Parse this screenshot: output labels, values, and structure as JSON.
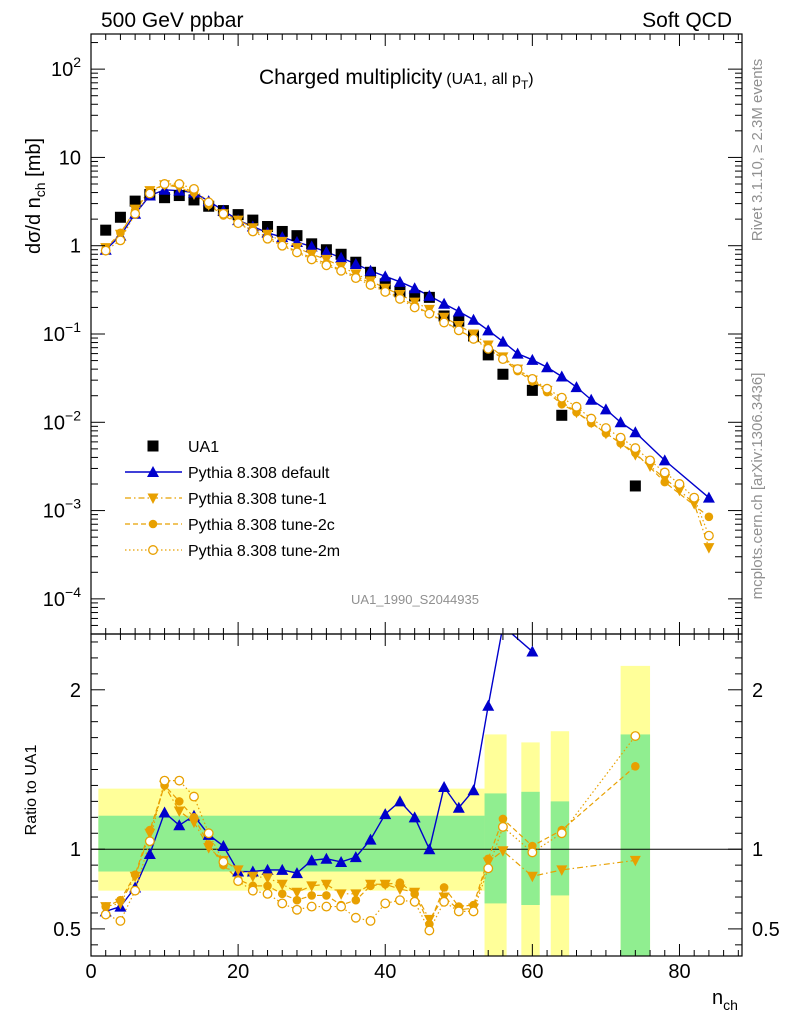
{
  "header": {
    "left": "500 GeV ppbar",
    "right": "Soft QCD"
  },
  "side_labels": {
    "top": "Rivet 3.1.10, ≥ 2.3M events",
    "bottom": "mcplots.cern.ch [arXiv:1306.3436]"
  },
  "watermark": "UA1_1990_S2044935",
  "colors": {
    "ua1": "#000000",
    "default": "#0000cc",
    "tune": "#e8a000",
    "green": "#90ee90",
    "yellow": "#ffff99"
  },
  "chart_data": [
    {
      "type": "scatter",
      "title": "Charged multiplicity",
      "title_suffix": "(UA1, all p",
      "title_suffix_sub": "T",
      "title_suffix_end": ")",
      "ylabel": "dσ/d n",
      "ylabel_sub": "ch",
      "ylabel_unit": " [mb]",
      "yscale": "log",
      "xlim": [
        0,
        88.5
      ],
      "ylim": [
        4e-05,
        250
      ],
      "y_ticks": [
        {
          "v": 100,
          "base": "10",
          "exp": "2"
        },
        {
          "v": 10,
          "base": "10",
          "exp": ""
        },
        {
          "v": 1,
          "base": "1",
          "exp": ""
        },
        {
          "v": 0.1,
          "base": "10",
          "exp": "−1"
        },
        {
          "v": 0.01,
          "base": "10",
          "exp": "−2"
        },
        {
          "v": 0.001,
          "base": "10",
          "exp": "−3"
        },
        {
          "v": 0.0001,
          "base": "10",
          "exp": "−4"
        }
      ],
      "legend_position": "bottom-left",
      "x": [
        2,
        4,
        6,
        8,
        10,
        12,
        14,
        16,
        18,
        20,
        22,
        24,
        26,
        28,
        30,
        32,
        34,
        36,
        38,
        40,
        42,
        44,
        46,
        48,
        50,
        52,
        54,
        56,
        58,
        60,
        62,
        64,
        66,
        68,
        70,
        72,
        74,
        76,
        78,
        80,
        82,
        84
      ],
      "series": [
        {
          "name": "UA1",
          "marker": "square",
          "x": [
            2,
            4,
            6,
            8,
            10,
            12,
            14,
            16,
            18,
            20,
            22,
            24,
            26,
            28,
            30,
            32,
            34,
            36,
            38,
            40,
            42,
            44,
            46,
            48,
            50,
            52,
            54,
            56,
            60,
            64,
            74
          ],
          "values": [
            1.5,
            2.1,
            3.2,
            3.8,
            3.5,
            3.7,
            3.3,
            2.8,
            2.5,
            2.25,
            1.95,
            1.65,
            1.45,
            1.3,
            1.05,
            0.9,
            0.8,
            0.65,
            0.5,
            0.37,
            0.3,
            0.27,
            0.26,
            0.16,
            0.14,
            0.095,
            0.058,
            0.035,
            0.023,
            0.012,
            0.0019
          ]
        },
        {
          "name": "Pythia 8.308 default",
          "marker": "triangle-up",
          "line": "solid",
          "x": [
            2,
            4,
            6,
            8,
            10,
            12,
            14,
            16,
            18,
            20,
            22,
            24,
            26,
            28,
            30,
            32,
            34,
            36,
            38,
            40,
            42,
            44,
            46,
            48,
            50,
            52,
            54,
            56,
            58,
            60,
            62,
            64,
            66,
            68,
            70,
            72,
            74,
            78,
            84
          ],
          "values": [
            0.9,
            1.3,
            2.3,
            3.7,
            4.3,
            4.2,
            4.0,
            3.2,
            2.5,
            1.95,
            1.65,
            1.4,
            1.25,
            1.1,
            0.98,
            0.85,
            0.73,
            0.62,
            0.52,
            0.45,
            0.39,
            0.33,
            0.27,
            0.22,
            0.18,
            0.145,
            0.11,
            0.082,
            0.06,
            0.051,
            0.042,
            0.033,
            0.025,
            0.018,
            0.014,
            0.01,
            0.0077,
            0.0037,
            0.0014
          ]
        },
        {
          "name": "Pythia 8.308 tune-1",
          "marker": "triangle-down",
          "line": "dashdot",
          "x": [
            2,
            4,
            6,
            8,
            10,
            12,
            14,
            16,
            18,
            20,
            22,
            24,
            26,
            28,
            30,
            32,
            34,
            36,
            38,
            40,
            42,
            44,
            46,
            48,
            50,
            52,
            54,
            56,
            58,
            60,
            62,
            64,
            66,
            68,
            70,
            72,
            74,
            76,
            78,
            80,
            82,
            84
          ],
          "values": [
            0.95,
            1.35,
            2.6,
            4.2,
            4.9,
            4.6,
            3.85,
            2.9,
            2.3,
            1.95,
            1.6,
            1.35,
            1.12,
            0.95,
            0.8,
            0.7,
            0.58,
            0.48,
            0.4,
            0.33,
            0.28,
            0.23,
            0.19,
            0.155,
            0.125,
            0.1,
            0.075,
            0.055,
            0.04,
            0.03,
            0.023,
            0.017,
            0.013,
            0.01,
            0.0075,
            0.0058,
            0.0043,
            0.0032,
            0.0023,
            0.0017,
            0.0012,
            0.00038
          ]
        },
        {
          "name": "Pythia 8.308 tune-2c",
          "marker": "circle",
          "line": "dashed",
          "x": [
            2,
            4,
            6,
            8,
            10,
            12,
            14,
            16,
            18,
            20,
            22,
            24,
            26,
            28,
            30,
            32,
            34,
            36,
            38,
            40,
            42,
            44,
            46,
            48,
            50,
            52,
            54,
            56,
            58,
            60,
            62,
            64,
            66,
            68,
            70,
            72,
            74,
            78,
            84
          ],
          "values": [
            0.93,
            1.4,
            2.5,
            4.2,
            4.9,
            4.8,
            4.0,
            2.9,
            2.2,
            1.8,
            1.5,
            1.25,
            1.03,
            0.86,
            0.73,
            0.63,
            0.53,
            0.45,
            0.38,
            0.31,
            0.26,
            0.21,
            0.17,
            0.14,
            0.11,
            0.09,
            0.07,
            0.052,
            0.038,
            0.029,
            0.022,
            0.016,
            0.013,
            0.0098,
            0.0075,
            0.0058,
            0.0045,
            0.0021,
            0.00085
          ]
        },
        {
          "name": "Pythia 8.308 tune-2m",
          "marker": "circle-open",
          "line": "dotted",
          "x": [
            2,
            4,
            6,
            8,
            10,
            12,
            14,
            16,
            18,
            20,
            22,
            24,
            26,
            28,
            30,
            32,
            34,
            36,
            38,
            40,
            42,
            44,
            46,
            48,
            50,
            52,
            54,
            56,
            58,
            60,
            62,
            64,
            66,
            68,
            70,
            72,
            74,
            76,
            78,
            80,
            82,
            84
          ],
          "values": [
            0.88,
            1.15,
            2.3,
            3.9,
            5.0,
            5.0,
            4.4,
            3.1,
            2.3,
            1.8,
            1.45,
            1.2,
            1.0,
            0.84,
            0.7,
            0.6,
            0.52,
            0.43,
            0.36,
            0.3,
            0.25,
            0.2,
            0.17,
            0.135,
            0.11,
            0.088,
            0.068,
            0.052,
            0.04,
            0.031,
            0.024,
            0.019,
            0.015,
            0.011,
            0.0086,
            0.0067,
            0.0051,
            0.0037,
            0.0027,
            0.002,
            0.0014,
            0.00052
          ]
        }
      ]
    },
    {
      "type": "line",
      "ylabel": "Ratio to UA1",
      "xlabel": "n",
      "xlabel_sub": "ch",
      "xlim": [
        0,
        88.5
      ],
      "ylim": [
        0.33,
        2.35
      ],
      "x_ticks": [
        0,
        20,
        40,
        60,
        80
      ],
      "y_ticks": [
        0.5,
        1,
        2
      ],
      "reference": 1,
      "bands": [
        {
          "x0": 1,
          "x1": 53.5,
          "yellow": [
            0.74,
            1.38
          ],
          "green": [
            0.86,
            1.21
          ]
        },
        {
          "x0": 53.5,
          "x1": 56.5,
          "yellow": [
            0.3,
            1.72
          ],
          "green": [
            0.66,
            1.35
          ]
        },
        {
          "x0": 58.5,
          "x1": 61,
          "yellow": [
            0.3,
            1.67
          ],
          "green": [
            0.65,
            1.36
          ]
        },
        {
          "x0": 62.5,
          "x1": 65,
          "yellow": [
            0.3,
            1.74
          ],
          "green": [
            0.71,
            1.3
          ]
        },
        {
          "x0": 72,
          "x1": 76,
          "yellow": [
            0.3,
            2.15
          ],
          "green": [
            0.3,
            1.72
          ]
        }
      ],
      "series": [
        {
          "name": "Pythia 8.308 default",
          "x": [
            2,
            4,
            6,
            8,
            10,
            12,
            14,
            16,
            18,
            20,
            22,
            24,
            26,
            28,
            30,
            32,
            34,
            36,
            38,
            40,
            42,
            44,
            46,
            48,
            50,
            52,
            54,
            56,
            60
          ],
          "values": [
            0.61,
            0.64,
            0.76,
            0.97,
            1.23,
            1.15,
            1.21,
            1.09,
            1.02,
            0.86,
            0.86,
            0.87,
            0.87,
            0.85,
            0.93,
            0.94,
            0.92,
            0.95,
            1.06,
            1.22,
            1.3,
            1.2,
            1.0,
            1.39,
            1.26,
            1.37,
            1.9,
            2.4,
            2.24
          ]
        },
        {
          "name": "Pythia 8.308 tune-1",
          "x": [
            2,
            4,
            6,
            8,
            10,
            12,
            14,
            16,
            18,
            20,
            22,
            24,
            26,
            28,
            30,
            32,
            34,
            36,
            38,
            40,
            42,
            44,
            46,
            48,
            50,
            52,
            54,
            56,
            60,
            64,
            74
          ],
          "values": [
            0.64,
            0.66,
            0.83,
            1.1,
            1.4,
            1.24,
            1.17,
            1.01,
            0.93,
            0.87,
            0.83,
            0.82,
            0.78,
            0.73,
            0.77,
            0.78,
            0.72,
            0.72,
            0.78,
            0.78,
            0.75,
            0.73,
            0.56,
            0.7,
            0.62,
            0.63,
            0.92,
            0.99,
            0.83,
            0.87,
            0.93
          ]
        },
        {
          "name": "Pythia 8.308 tune-2c",
          "x": [
            2,
            4,
            6,
            8,
            10,
            12,
            14,
            16,
            18,
            20,
            22,
            24,
            26,
            28,
            30,
            32,
            34,
            36,
            38,
            40,
            42,
            44,
            46,
            48,
            50,
            52,
            54,
            56,
            60,
            64,
            74
          ],
          "values": [
            0.64,
            0.68,
            0.84,
            1.12,
            1.4,
            1.3,
            1.2,
            1.03,
            0.9,
            0.81,
            0.77,
            0.77,
            0.72,
            0.68,
            0.71,
            0.71,
            0.65,
            0.68,
            0.77,
            0.78,
            0.79,
            0.72,
            0.53,
            0.76,
            0.64,
            0.65,
            0.94,
            1.19,
            1.02,
            1.12,
            1.52
          ]
        },
        {
          "name": "Pythia 8.308 tune-2m",
          "x": [
            2,
            4,
            6,
            8,
            10,
            12,
            14,
            16,
            18,
            20,
            22,
            24,
            26,
            28,
            30,
            32,
            34,
            36,
            38,
            40,
            42,
            44,
            46,
            48,
            50,
            52,
            54,
            56,
            60,
            64,
            74
          ],
          "values": [
            0.59,
            0.55,
            0.74,
            1.05,
            1.43,
            1.43,
            1.33,
            1.1,
            0.92,
            0.8,
            0.74,
            0.72,
            0.66,
            0.62,
            0.64,
            0.64,
            0.64,
            0.57,
            0.55,
            0.66,
            0.68,
            0.67,
            0.49,
            0.67,
            0.61,
            0.61,
            0.88,
            1.14,
            0.98,
            1.1,
            1.71
          ]
        }
      ]
    }
  ]
}
